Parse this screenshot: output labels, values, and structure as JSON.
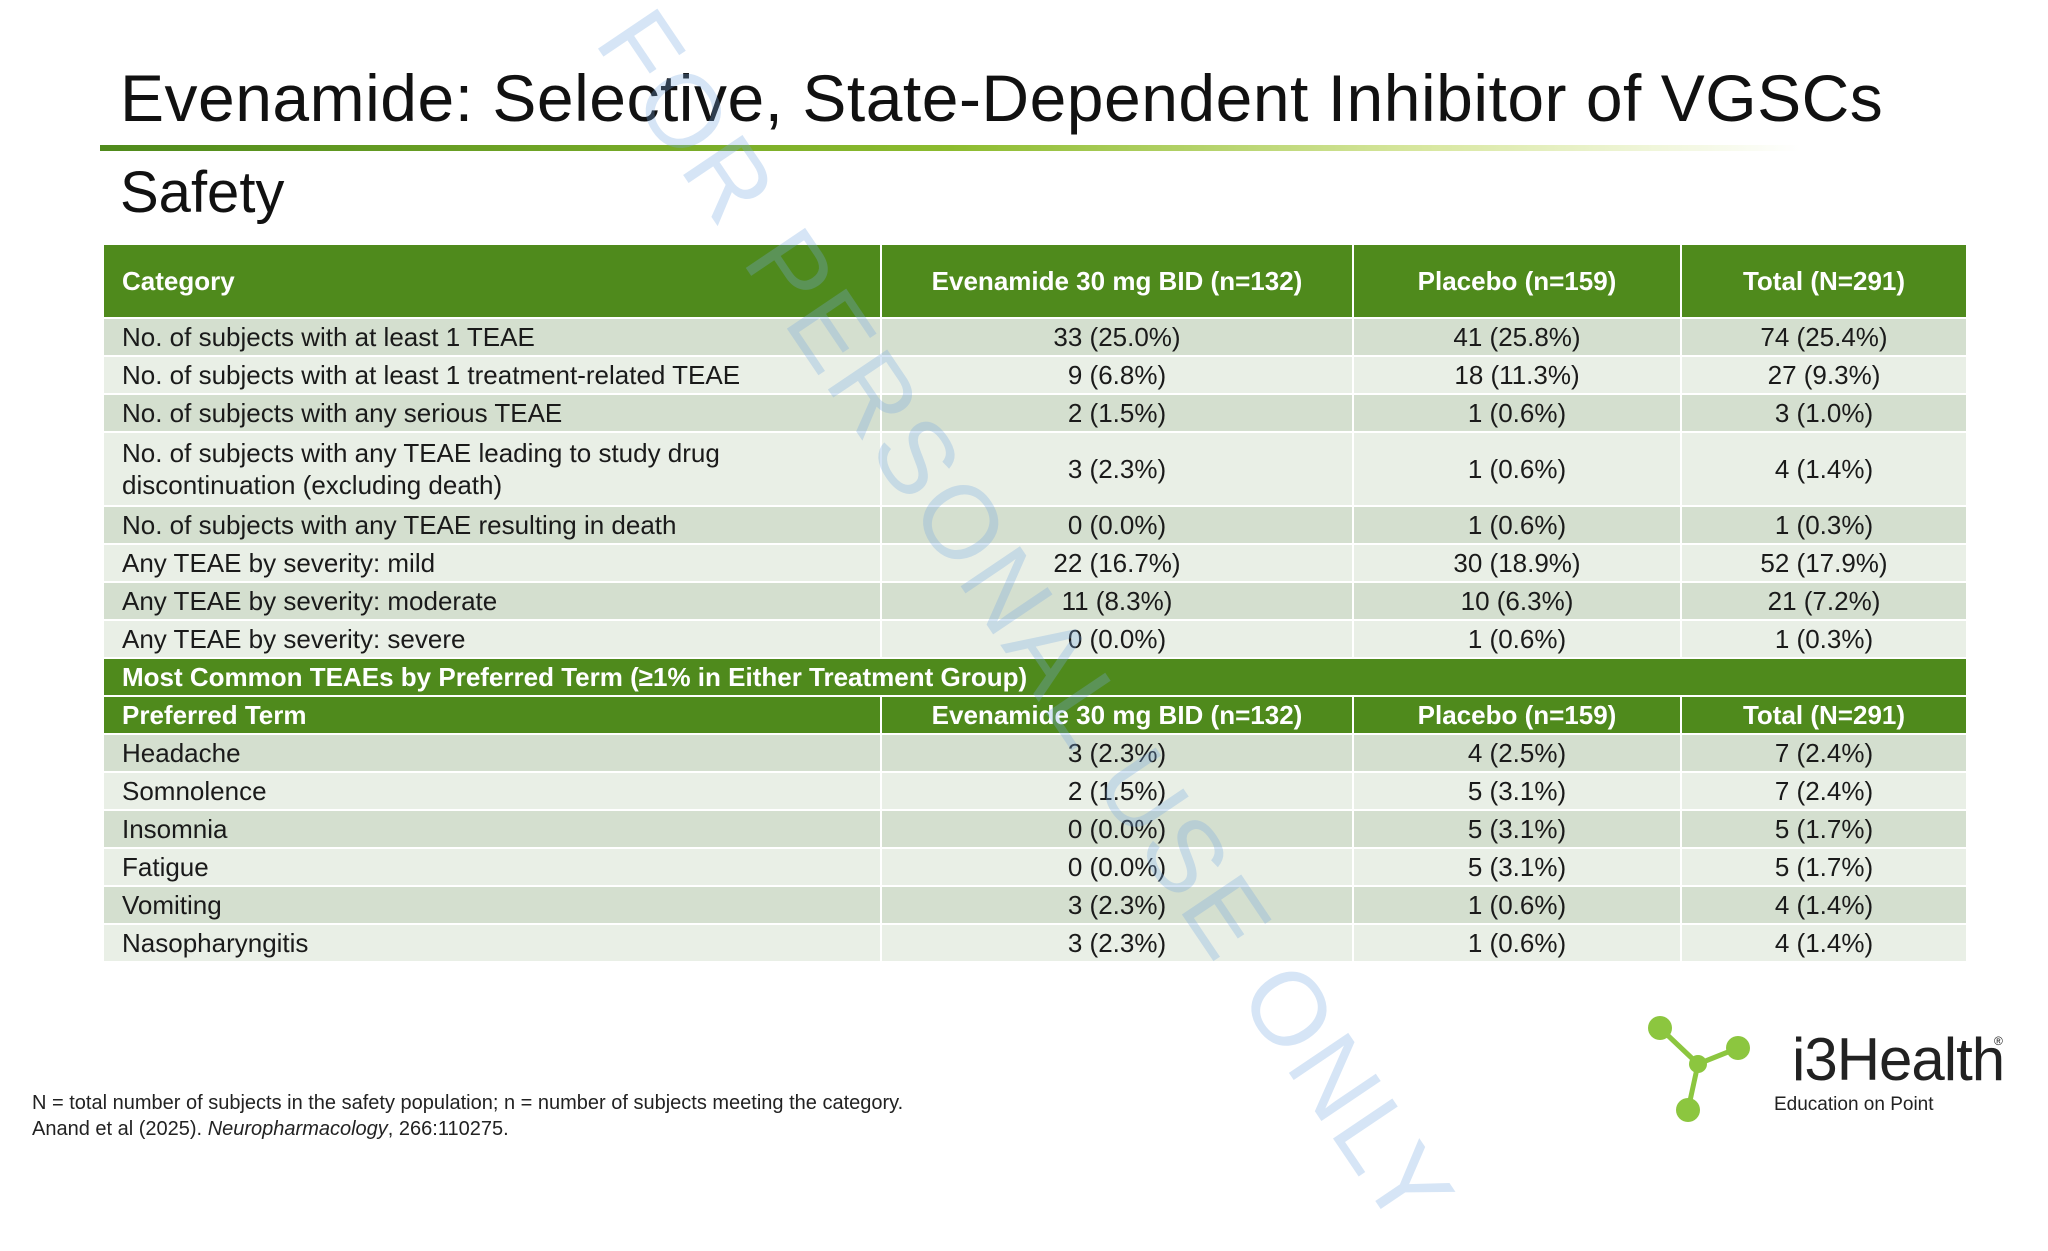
{
  "title": "Evenamide: Selective, State-Dependent Inhibitor of VGSCs",
  "subtitle": "Safety",
  "table": {
    "headers": [
      "Category",
      "Evenamide 30 mg BID (n=132)",
      "Placebo (n=159)",
      "Total (N=291)"
    ],
    "rows": [
      [
        "No. of subjects with at least 1 TEAE",
        "33 (25.0%)",
        "41 (25.8%)",
        "74 (25.4%)"
      ],
      [
        "No. of subjects with at least 1 treatment-related TEAE",
        "9 (6.8%)",
        "18 (11.3%)",
        "27 (9.3%)"
      ],
      [
        "No. of subjects with any serious TEAE",
        "2 (1.5%)",
        "1 (0.6%)",
        "3 (1.0%)"
      ],
      [
        "No. of subjects with any TEAE leading to study drug discontinuation (excluding death)",
        "3 (2.3%)",
        "1 (0.6%)",
        "4 (1.4%)"
      ],
      [
        "No. of subjects with any TEAE resulting in death",
        "0 (0.0%)",
        "1 (0.6%)",
        "1 (0.3%)"
      ],
      [
        "Any TEAE by severity: mild",
        "22 (16.7%)",
        "30 (18.9%)",
        "52 (17.9%)"
      ],
      [
        "Any TEAE by severity: moderate",
        "11 (8.3%)",
        "10 (6.3%)",
        "21 (7.2%)"
      ],
      [
        "Any TEAE by severity: severe",
        "0 (0.0%)",
        "1 (0.6%)",
        "1 (0.3%)"
      ]
    ],
    "section_title": "Most Common TEAEs by Preferred Term (≥1% in Either Treatment Group)",
    "sub_headers": [
      "Preferred Term",
      "Evenamide 30 mg BID (n=132)",
      "Placebo (n=159)",
      "Total (N=291)"
    ],
    "pt_rows": [
      [
        "Headache",
        "3 (2.3%)",
        "4 (2.5%)",
        "7 (2.4%)"
      ],
      [
        "Somnolence",
        "2 (1.5%)",
        "5 (3.1%)",
        "7 (2.4%)"
      ],
      [
        "Insomnia",
        "0 (0.0%)",
        "5 (3.1%)",
        "5 (1.7%)"
      ],
      [
        "Fatigue",
        "0 (0.0%)",
        "5 (3.1%)",
        "5 (1.7%)"
      ],
      [
        "Vomiting",
        "3 (2.3%)",
        "1 (0.6%)",
        "4 (1.4%)"
      ],
      [
        "Nasopharyngitis",
        "3 (2.3%)",
        "1 (0.6%)",
        "4 (1.4%)"
      ]
    ]
  },
  "watermark": "FOR PERSONAL USE ONLY",
  "footnote": {
    "line1": "N = total number of subjects in the safety population; n = number of subjects meeting the category.",
    "line2_prefix": "Anand et al (2025). ",
    "line2_journal": "Neuropharmacology",
    "line2_suffix": ", 266:110275."
  },
  "logo": {
    "name": "i3Health",
    "reg": "®",
    "tagline": "Education on Point",
    "color_green": "#8cc63f"
  },
  "colors": {
    "header_green": "#4f8a1c",
    "row_odd": "#d4dfcf",
    "row_even": "#e9efe6"
  }
}
